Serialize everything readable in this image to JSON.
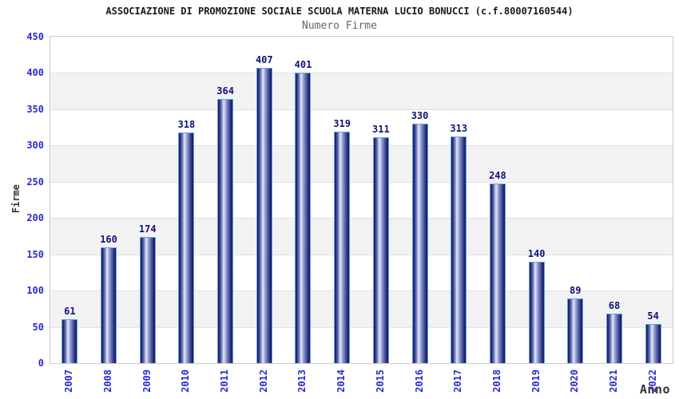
{
  "header": {
    "title": "ASSOCIAZIONE DI PROMOZIONE SOCIALE SCUOLA MATERNA LUCIO BONUCCI (c.f.80007160544)",
    "subtitle": "Numero Firme"
  },
  "axes": {
    "y_title": "Firme",
    "x_title": "Anno",
    "y_ticks": [
      450,
      400,
      350,
      300,
      250,
      200,
      150,
      100,
      50,
      0
    ],
    "y_max": 450,
    "y_step": 50
  },
  "chart_data": {
    "type": "bar",
    "title": "Numero Firme",
    "xlabel": "Anno",
    "ylabel": "Firme",
    "ylim": [
      0,
      450
    ],
    "grid": "horizontal-bands",
    "legend": "none",
    "categories": [
      "2007",
      "2008",
      "2009",
      "2010",
      "2011",
      "2012",
      "2013",
      "2014",
      "2015",
      "2016",
      "2017",
      "2018",
      "2019",
      "2020",
      "2021",
      "2022"
    ],
    "values": [
      61,
      160,
      174,
      318,
      364,
      407,
      401,
      319,
      311,
      330,
      313,
      248,
      140,
      89,
      68,
      54
    ]
  },
  "colors": {
    "axis_text": "#2a2ad2",
    "value_label": "#12127a",
    "bar_dark": "#101758",
    "bar_light": "#e6eafb",
    "bar_border": "#64a2e6",
    "band_gray": "#f2f2f2",
    "grid_line": "#e2e2e2",
    "plot_border": "#cccccc",
    "title_text": "#1a1a1a",
    "subtitle_text": "#666666",
    "axis_title_text": "#333333"
  }
}
